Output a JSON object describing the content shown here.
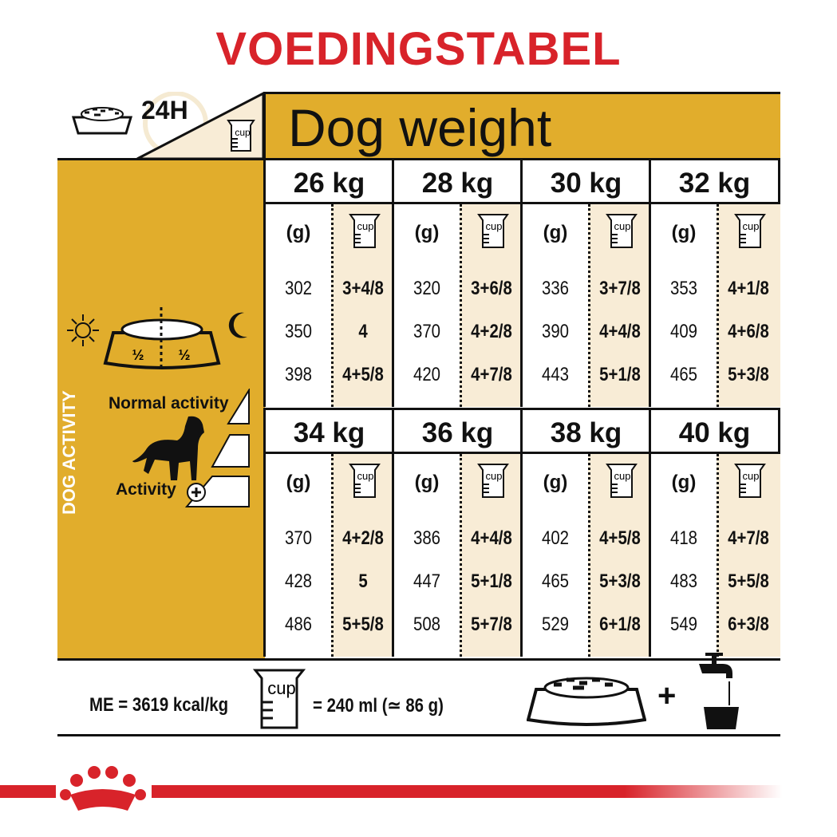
{
  "title": "VOEDINGSTABEL",
  "header": {
    "label_24h": "24H",
    "dog_weight": "Dog weight",
    "cup_label": "cup"
  },
  "side": {
    "half_left": "½",
    "half_right": "½",
    "dog_activity": "DOG ACTIVITY",
    "normal_activity": "Normal activity",
    "activity_plus": "Activity"
  },
  "table": {
    "grams_header": "(g)",
    "cup_header": "cup",
    "blocks": [
      {
        "weight": "26 kg",
        "rows": [
          [
            "302",
            "3+4/8"
          ],
          [
            "350",
            "4"
          ],
          [
            "398",
            "4+5/8"
          ]
        ]
      },
      {
        "weight": "28 kg",
        "rows": [
          [
            "320",
            "3+6/8"
          ],
          [
            "370",
            "4+2/8"
          ],
          [
            "420",
            "4+7/8"
          ]
        ]
      },
      {
        "weight": "30 kg",
        "rows": [
          [
            "336",
            "3+7/8"
          ],
          [
            "390",
            "4+4/8"
          ],
          [
            "443",
            "5+1/8"
          ]
        ]
      },
      {
        "weight": "32 kg",
        "rows": [
          [
            "353",
            "4+1/8"
          ],
          [
            "409",
            "4+6/8"
          ],
          [
            "465",
            "5+3/8"
          ]
        ]
      },
      {
        "weight": "34 kg",
        "rows": [
          [
            "370",
            "4+2/8"
          ],
          [
            "428",
            "5"
          ],
          [
            "486",
            "5+5/8"
          ]
        ]
      },
      {
        "weight": "36 kg",
        "rows": [
          [
            "386",
            "4+4/8"
          ],
          [
            "447",
            "5+1/8"
          ],
          [
            "508",
            "5+7/8"
          ]
        ]
      },
      {
        "weight": "38 kg",
        "rows": [
          [
            "402",
            "4+5/8"
          ],
          [
            "465",
            "5+3/8"
          ],
          [
            "529",
            "6+1/8"
          ]
        ]
      },
      {
        "weight": "40 kg",
        "rows": [
          [
            "418",
            "4+7/8"
          ],
          [
            "483",
            "5+5/8"
          ],
          [
            "549",
            "6+3/8"
          ]
        ]
      }
    ]
  },
  "footer": {
    "energy": "ME = 3619 kcal/kg",
    "cup_label": "cup",
    "cup_equiv": "= 240 ml (≃ 86 g)",
    "plus": "+"
  },
  "colors": {
    "brand_red": "#d8232a",
    "mustard": "#e1ad2c",
    "cream": "#f8ecd6"
  }
}
